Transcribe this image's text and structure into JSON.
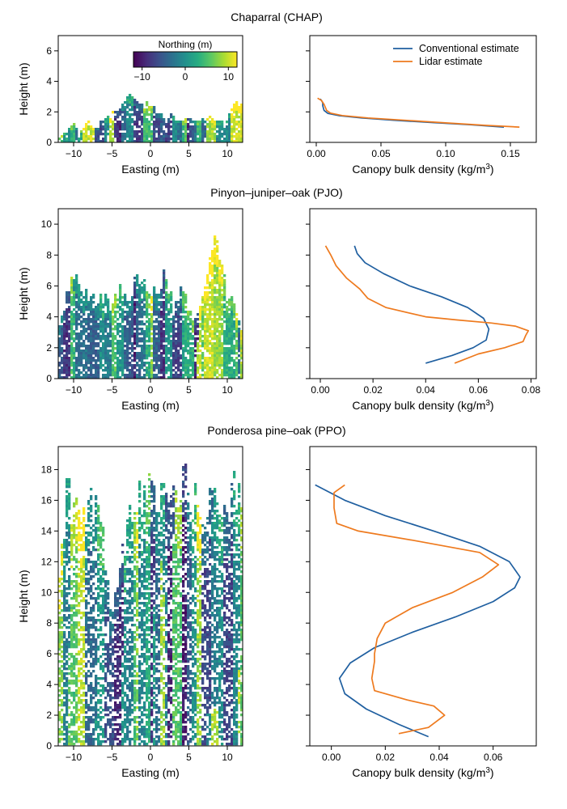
{
  "colors": {
    "conventional": "#1f5fa0",
    "lidar": "#ee7a1e",
    "viridis": [
      "#440154",
      "#472c7a",
      "#3b518b",
      "#2c718e",
      "#21908d",
      "#27ad81",
      "#5cc863",
      "#aadc32",
      "#fde725"
    ]
  },
  "colorbar": {
    "title": "Northing (m)",
    "range": [
      -12,
      12
    ],
    "ticks": [
      -10,
      0,
      10
    ],
    "tick_labels": [
      "−10",
      "0",
      "10"
    ]
  },
  "legend": {
    "conventional_label": "Conventional estimate",
    "lidar_label": "Lidar estimate",
    "position": "upper-right of first profile panel"
  },
  "chart_data": [
    {
      "type": "scatter",
      "panel": "CHAP-canopy",
      "title": "Chaparral (CHAP)",
      "xlabel": "Easting (m)",
      "ylabel": "Height (m)",
      "xlim": [
        -12,
        12
      ],
      "ylim": [
        0,
        7
      ],
      "xticks": [
        -10,
        -5,
        0,
        5,
        10
      ],
      "xtick_labels": [
        "−10",
        "−5",
        "0",
        "5",
        "10"
      ],
      "yticks": [
        0,
        2,
        4,
        6
      ],
      "ytick_labels": [
        "0",
        "2",
        "4",
        "6"
      ],
      "canopy_profile": [
        [
          -12,
          0.4
        ],
        [
          -11,
          0.7
        ],
        [
          -10,
          1.2
        ],
        [
          -9,
          0.8
        ],
        [
          -8,
          1.4
        ],
        [
          -7,
          0.9
        ],
        [
          -6,
          1.6
        ],
        [
          -5,
          1.8
        ],
        [
          -4,
          2.3
        ],
        [
          -3,
          3.2
        ],
        [
          -2,
          2.8
        ],
        [
          -1,
          2.2
        ],
        [
          0,
          2.6
        ],
        [
          1,
          2.0
        ],
        [
          2,
          1.7
        ],
        [
          3,
          1.8
        ],
        [
          4,
          1.5
        ],
        [
          5,
          1.6
        ],
        [
          6,
          1.4
        ],
        [
          7,
          1.6
        ],
        [
          8,
          1.7
        ],
        [
          9,
          1.4
        ],
        [
          10,
          1.5
        ],
        [
          11,
          2.5
        ],
        [
          12,
          2.3
        ]
      ]
    },
    {
      "type": "line",
      "panel": "CHAP-density",
      "xlabel": "Canopy bulk density (kg/m",
      "xlabel_sup": "3",
      "xlabel_end": ")",
      "xlim": [
        -0.005,
        0.17
      ],
      "ylim": [
        0,
        7
      ],
      "xticks": [
        0,
        0.05,
        0.1,
        0.15
      ],
      "xtick_labels": [
        "0.00",
        "0.05",
        "0.10",
        "0.15"
      ],
      "yticks": [
        0,
        2,
        4,
        6
      ],
      "series": [
        {
          "name": "Conventional estimate",
          "x": [
            0.145,
            0.12,
            0.09,
            0.06,
            0.035,
            0.018,
            0.009,
            0.006,
            0.005,
            0.005,
            0.004,
            0.003
          ],
          "y": [
            1.0,
            1.15,
            1.3,
            1.45,
            1.6,
            1.75,
            1.9,
            2.1,
            2.4,
            2.6,
            2.75,
            2.85
          ]
        },
        {
          "name": "Lidar estimate",
          "x": [
            0.157,
            0.13,
            0.1,
            0.07,
            0.04,
            0.02,
            0.011,
            0.008,
            0.007,
            0.006,
            0.004,
            0.001
          ],
          "y": [
            1.0,
            1.12,
            1.28,
            1.44,
            1.6,
            1.76,
            1.92,
            2.1,
            2.3,
            2.5,
            2.75,
            2.9
          ]
        }
      ]
    },
    {
      "type": "scatter",
      "panel": "PJO-canopy",
      "title": "Pinyon–juniper–oak (PJO)",
      "xlabel": "Easting (m)",
      "ylabel": "Height (m)",
      "xlim": [
        -12,
        12
      ],
      "ylim": [
        0,
        11
      ],
      "xticks": [
        -10,
        -5,
        0,
        5,
        10
      ],
      "xtick_labels": [
        "−10",
        "−5",
        "0",
        "5",
        "10"
      ],
      "yticks": [
        0,
        2,
        4,
        6,
        8,
        10
      ],
      "ytick_labels": [
        "0",
        "2",
        "4",
        "6",
        "8",
        "10"
      ],
      "canopy_profile": [
        [
          -12,
          3.5
        ],
        [
          -11,
          5.0
        ],
        [
          -10,
          6.8
        ],
        [
          -9,
          6.0
        ],
        [
          -8,
          5.5
        ],
        [
          -7,
          4.8
        ],
        [
          -6,
          5.2
        ],
        [
          -5,
          4.6
        ],
        [
          -4,
          6.2
        ],
        [
          -3,
          5.0
        ],
        [
          -2,
          6.8
        ],
        [
          -1,
          6.2
        ],
        [
          0,
          5.4
        ],
        [
          1,
          6.0
        ],
        [
          2,
          6.8
        ],
        [
          3,
          4.8
        ],
        [
          4,
          5.6
        ],
        [
          5,
          4.6
        ],
        [
          6,
          3.8
        ],
        [
          7,
          5.8
        ],
        [
          8,
          8.8
        ],
        [
          9,
          8.0
        ],
        [
          10,
          5.6
        ],
        [
          11,
          4.6
        ],
        [
          12,
          3.2
        ]
      ]
    },
    {
      "type": "line",
      "panel": "PJO-density",
      "xlabel": "Canopy bulk density (kg/m",
      "xlabel_sup": "3",
      "xlabel_end": ")",
      "xlim": [
        -0.004,
        0.082
      ],
      "ylim": [
        0,
        11
      ],
      "xticks": [
        0,
        0.02,
        0.04,
        0.06,
        0.08
      ],
      "xtick_labels": [
        "0.00",
        "0.02",
        "0.04",
        "0.06",
        "0.08"
      ],
      "yticks": [
        0,
        2,
        4,
        6,
        8,
        10
      ],
      "series": [
        {
          "name": "Conventional estimate",
          "x": [
            0.04,
            0.05,
            0.058,
            0.063,
            0.064,
            0.062,
            0.056,
            0.046,
            0.034,
            0.024,
            0.017,
            0.014,
            0.013
          ],
          "y": [
            1.0,
            1.5,
            2.0,
            2.5,
            3.2,
            3.9,
            4.6,
            5.3,
            6.0,
            6.8,
            7.5,
            8.1,
            8.6
          ]
        },
        {
          "name": "Lidar estimate",
          "x": [
            0.051,
            0.06,
            0.07,
            0.077,
            0.078,
            0.079,
            0.074,
            0.065,
            0.052,
            0.04,
            0.025,
            0.018,
            0.015,
            0.01,
            0.006,
            0.004,
            0.002
          ],
          "y": [
            1.0,
            1.6,
            2.0,
            2.4,
            2.8,
            3.1,
            3.4,
            3.6,
            3.8,
            4.0,
            4.6,
            5.2,
            5.8,
            6.5,
            7.3,
            8.0,
            8.6
          ]
        }
      ]
    },
    {
      "type": "scatter",
      "panel": "PPO-canopy",
      "title": "Ponderosa pine–oak (PPO)",
      "xlabel": "Easting (m)",
      "ylabel": "Height (m)",
      "xlim": [
        -12,
        12
      ],
      "ylim": [
        0,
        19.5
      ],
      "xticks": [
        -10,
        -5,
        0,
        5,
        10
      ],
      "xtick_labels": [
        "−10",
        "−5",
        "0",
        "5",
        "10"
      ],
      "yticks": [
        0,
        2,
        4,
        6,
        8,
        10,
        12,
        14,
        16,
        18
      ],
      "ytick_labels": [
        "0",
        "2",
        "4",
        "6",
        "8",
        "10",
        "12",
        "14",
        "16",
        "18"
      ],
      "canopy_profile": [
        [
          -12,
          9.0
        ],
        [
          -11,
          16.0
        ],
        [
          -10,
          15.6
        ],
        [
          -9,
          14.5
        ],
        [
          -8,
          15.8
        ],
        [
          -7,
          16.0
        ],
        [
          -6,
          13.0
        ],
        [
          -5,
          8.5
        ],
        [
          -4,
          11.0
        ],
        [
          -3,
          14.0
        ],
        [
          -2,
          15.6
        ],
        [
          -1,
          16.0
        ],
        [
          0,
          17.6
        ],
        [
          1,
          16.0
        ],
        [
          2,
          16.5
        ],
        [
          3,
          15.5
        ],
        [
          4,
          17.0
        ],
        [
          5,
          16.5
        ],
        [
          6,
          16.0
        ],
        [
          7,
          15.0
        ],
        [
          8,
          16.4
        ],
        [
          9,
          14.0
        ],
        [
          10,
          15.6
        ],
        [
          11,
          17.4
        ],
        [
          12,
          16.8
        ]
      ]
    },
    {
      "type": "line",
      "panel": "PPO-density",
      "xlabel": "Canopy bulk density (kg/m",
      "xlabel_sup": "3",
      "xlabel_end": ")",
      "xlim": [
        -0.008,
        0.076
      ],
      "ylim": [
        0,
        19.5
      ],
      "xticks": [
        0,
        0.02,
        0.04,
        0.06
      ],
      "xtick_labels": [
        "0.00",
        "0.02",
        "0.04",
        "0.06"
      ],
      "yticks": [
        0,
        2,
        4,
        6,
        8,
        10,
        12,
        14,
        16,
        18
      ],
      "series": [
        {
          "name": "Conventional estimate",
          "x": [
            0.036,
            0.025,
            0.013,
            0.005,
            0.003,
            0.007,
            0.016,
            0.03,
            0.046,
            0.06,
            0.068,
            0.07,
            0.066,
            0.055,
            0.038,
            0.02,
            0.005,
            -0.006
          ],
          "y": [
            0.6,
            1.4,
            2.4,
            3.4,
            4.4,
            5.4,
            6.4,
            7.4,
            8.4,
            9.4,
            10.3,
            11.0,
            12.0,
            13.0,
            14.0,
            15.0,
            16.0,
            17.0
          ]
        },
        {
          "name": "Lidar estimate",
          "x": [
            0.025,
            0.036,
            0.042,
            0.038,
            0.028,
            0.016,
            0.015,
            0.016,
            0.016,
            0.017,
            0.02,
            0.03,
            0.045,
            0.056,
            0.062,
            0.055,
            0.03,
            0.01,
            0.002,
            0.001,
            0.001,
            0.005
          ],
          "y": [
            0.8,
            1.2,
            2.0,
            2.6,
            3.0,
            3.6,
            4.4,
            5.5,
            6.0,
            7.0,
            8.0,
            9.0,
            10.0,
            11.0,
            11.8,
            12.6,
            13.4,
            14.0,
            14.5,
            15.5,
            16.5,
            17.0
          ]
        }
      ]
    }
  ]
}
